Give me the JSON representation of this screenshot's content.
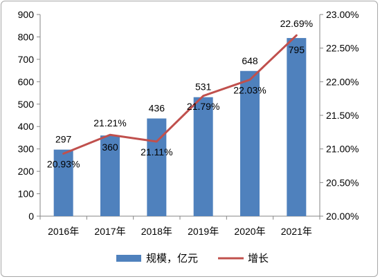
{
  "chart_data": {
    "type": "bar",
    "categories": [
      "2016年",
      "2017年",
      "2018年",
      "2019年",
      "2020年",
      "2021年"
    ],
    "series": [
      {
        "name": "规模，亿元",
        "type": "bar",
        "axis": "left",
        "values": [
          297,
          360,
          436,
          531,
          648,
          795
        ],
        "labels": [
          "297",
          "360",
          "436",
          "531",
          "648",
          "795"
        ],
        "color": "#4f81bd"
      },
      {
        "name": "增长",
        "type": "line",
        "axis": "right",
        "values": [
          20.93,
          21.21,
          21.11,
          21.79,
          22.03,
          22.69
        ],
        "labels": [
          "20.93%",
          "21.21%",
          "21.11%",
          "21.79%",
          "22.03%",
          "22.69%"
        ],
        "color": "#c0504d"
      }
    ],
    "y_left": {
      "range": [
        0,
        900
      ],
      "ticks": [
        0,
        100,
        200,
        300,
        400,
        500,
        600,
        700,
        800,
        900
      ],
      "tick_labels": [
        "0",
        "100",
        "200",
        "300",
        "400",
        "500",
        "600",
        "700",
        "800",
        "900"
      ]
    },
    "y_right": {
      "range": [
        20.0,
        23.0
      ],
      "ticks": [
        20.0,
        20.5,
        21.0,
        21.5,
        22.0,
        22.5,
        23.0
      ],
      "tick_labels": [
        "20.00%",
        "20.50%",
        "21.00%",
        "21.50%",
        "22.00%",
        "22.50%",
        "23.00%"
      ]
    },
    "grid": false,
    "legend": {
      "position": "bottom",
      "entries": [
        "规模，亿元",
        "增长"
      ]
    },
    "axis_color": "#868686",
    "text_color": "#000000"
  }
}
